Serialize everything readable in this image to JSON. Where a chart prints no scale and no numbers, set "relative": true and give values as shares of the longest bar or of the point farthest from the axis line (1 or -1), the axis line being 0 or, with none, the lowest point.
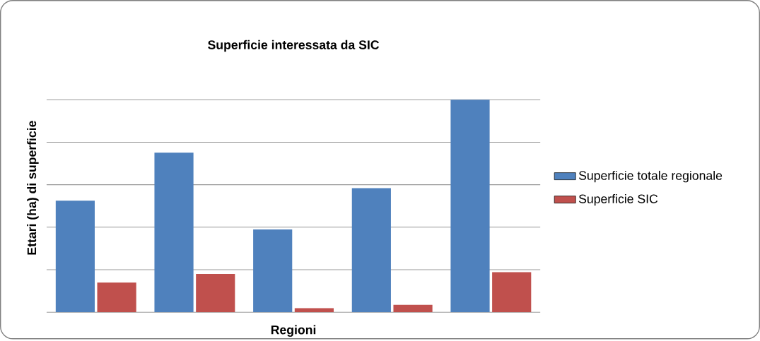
{
  "chart_data": {
    "type": "bar",
    "title": "Superficie interessata da SIC",
    "xlabel": "Regioni",
    "ylabel": "Ettari (ha) di superficie",
    "relative": true,
    "categories": [
      null,
      null,
      null,
      null,
      null
    ],
    "series": [
      {
        "name": "Superficie totale regionale",
        "color": "#4f81bd",
        "values": [
          0.525,
          0.751,
          0.389,
          0.584,
          1
        ]
      },
      {
        "name": "Superficie SIC",
        "color": "#c0504d",
        "values": [
          0.139,
          0.18,
          0.019,
          0.035,
          0.188
        ]
      }
    ],
    "grid": "y",
    "legend": "right"
  }
}
